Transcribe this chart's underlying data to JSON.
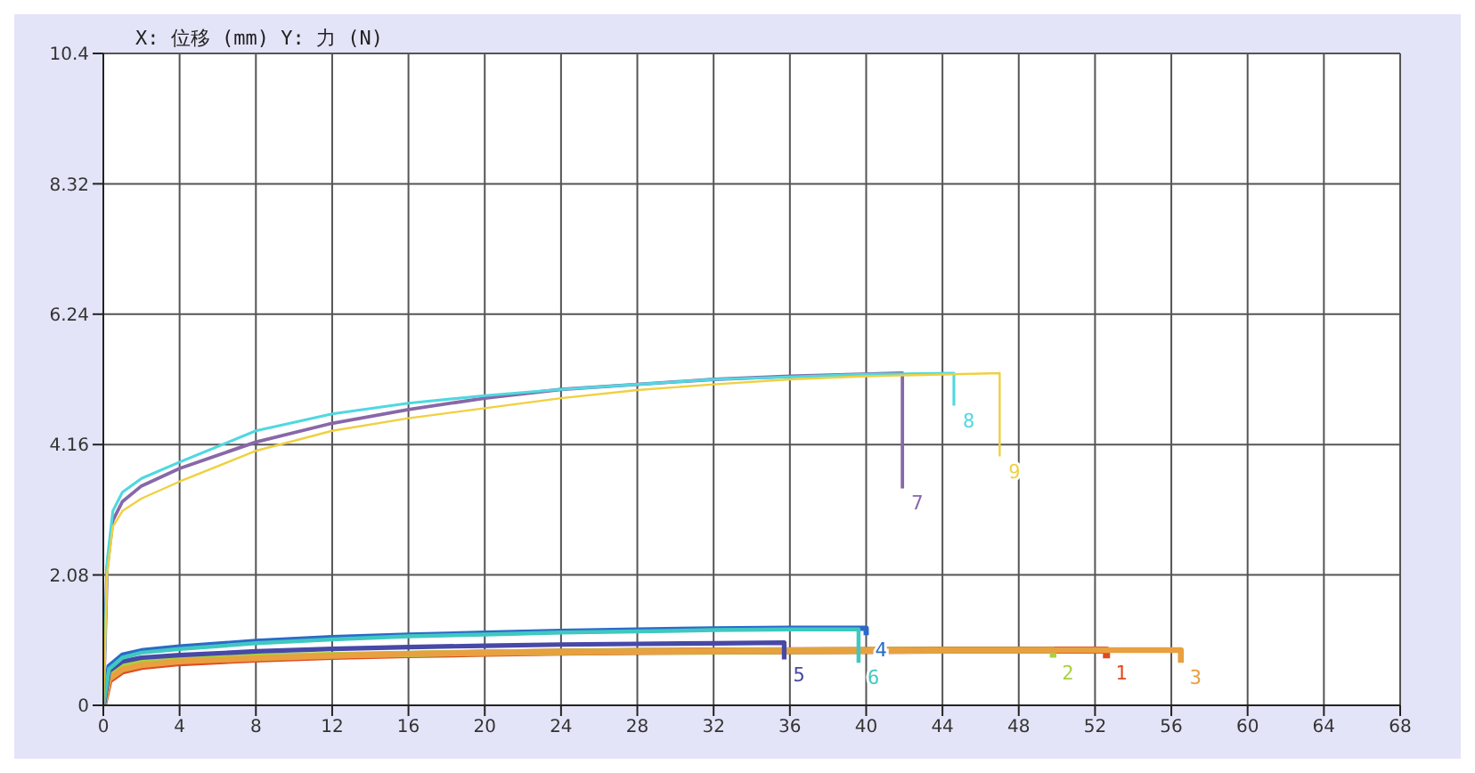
{
  "chart_data": {
    "type": "line",
    "title": "X: 位移 (mm)   Y: 力 (N)",
    "xlim": [
      0,
      68
    ],
    "xticks": [
      0,
      4,
      8,
      12,
      16,
      20,
      24,
      28,
      32,
      36,
      40,
      44,
      48,
      52,
      56,
      60,
      64,
      68
    ],
    "ylim": [
      0,
      10.4
    ],
    "yticks": [
      0,
      2.08,
      4.16,
      6.24,
      8.32,
      10.4
    ],
    "grid": true,
    "legend": false,
    "marker": "none",
    "series": [
      {
        "name": "1",
        "color": "#e04a20",
        "x": [
          0,
          0.3,
          1,
          2,
          4,
          8,
          12,
          16,
          20,
          24,
          28,
          36,
          44,
          52.6,
          52.6
        ],
        "values": [
          0,
          0.4,
          0.55,
          0.62,
          0.68,
          0.74,
          0.78,
          0.81,
          0.83,
          0.85,
          0.86,
          0.87,
          0.88,
          0.88,
          0.75
        ]
      },
      {
        "name": "2",
        "color": "#a8d040",
        "x": [
          0,
          0.3,
          1,
          2,
          4,
          8,
          12,
          16,
          20,
          24,
          28,
          36,
          44,
          49.8,
          49.8
        ],
        "values": [
          0,
          0.5,
          0.64,
          0.7,
          0.74,
          0.78,
          0.8,
          0.82,
          0.84,
          0.85,
          0.86,
          0.87,
          0.88,
          0.88,
          0.76
        ]
      },
      {
        "name": "3",
        "color": "#e8a040",
        "x": [
          0,
          0.3,
          1,
          2,
          4,
          8,
          12,
          16,
          20,
          24,
          28,
          36,
          44,
          56.5,
          56.5
        ],
        "values": [
          0,
          0.42,
          0.57,
          0.64,
          0.7,
          0.75,
          0.79,
          0.82,
          0.84,
          0.85,
          0.86,
          0.87,
          0.88,
          0.88,
          0.68
        ]
      },
      {
        "name": "4",
        "color": "#2a6ac8",
        "x": [
          0,
          0.3,
          1,
          2,
          4,
          8,
          12,
          16,
          20,
          24,
          28,
          32,
          36,
          40,
          40
        ],
        "values": [
          0,
          0.62,
          0.8,
          0.87,
          0.93,
          1.02,
          1.08,
          1.12,
          1.15,
          1.18,
          1.2,
          1.22,
          1.23,
          1.23,
          1.12
        ]
      },
      {
        "name": "5",
        "color": "#4848a8",
        "x": [
          0,
          0.3,
          1,
          2,
          4,
          8,
          12,
          16,
          20,
          24,
          28,
          32,
          35.7,
          35.7
        ],
        "values": [
          0,
          0.55,
          0.7,
          0.76,
          0.8,
          0.86,
          0.9,
          0.93,
          0.95,
          0.97,
          0.98,
          0.99,
          1.0,
          0.73
        ]
      },
      {
        "name": "6",
        "color": "#40c8c0",
        "x": [
          0,
          0.3,
          1,
          2,
          4,
          8,
          12,
          16,
          20,
          24,
          28,
          32,
          36,
          39.6,
          39.6
        ],
        "values": [
          0,
          0.58,
          0.76,
          0.84,
          0.9,
          0.99,
          1.05,
          1.1,
          1.13,
          1.16,
          1.18,
          1.2,
          1.21,
          1.21,
          0.68
        ]
      },
      {
        "name": "7",
        "color": "#8868a8",
        "x": [
          0,
          0.2,
          0.5,
          1,
          2,
          4,
          8,
          12,
          16,
          20,
          24,
          28,
          32,
          36,
          41.9,
          41.9
        ],
        "values": [
          0,
          2.2,
          2.95,
          3.25,
          3.5,
          3.78,
          4.2,
          4.5,
          4.72,
          4.9,
          5.04,
          5.12,
          5.2,
          5.25,
          5.3,
          3.46
        ]
      },
      {
        "name": "8",
        "color": "#50d8e0",
        "x": [
          0,
          0.2,
          0.5,
          1,
          2,
          4,
          8,
          12,
          16,
          20,
          24,
          28,
          32,
          36,
          40,
          44.6,
          44.6
        ],
        "values": [
          0,
          2.3,
          3.1,
          3.4,
          3.62,
          3.88,
          4.38,
          4.65,
          4.82,
          4.94,
          5.04,
          5.12,
          5.2,
          5.24,
          5.28,
          5.3,
          4.78
        ]
      },
      {
        "name": "9",
        "color": "#f0d040",
        "x": [
          0,
          0.2,
          0.5,
          1,
          2,
          4,
          8,
          12,
          16,
          20,
          24,
          28,
          32,
          36,
          40,
          47,
          47
        ],
        "values": [
          0,
          2.1,
          2.85,
          3.1,
          3.3,
          3.57,
          4.06,
          4.38,
          4.58,
          4.74,
          4.9,
          5.03,
          5.12,
          5.2,
          5.25,
          5.3,
          3.97
        ]
      }
    ]
  }
}
